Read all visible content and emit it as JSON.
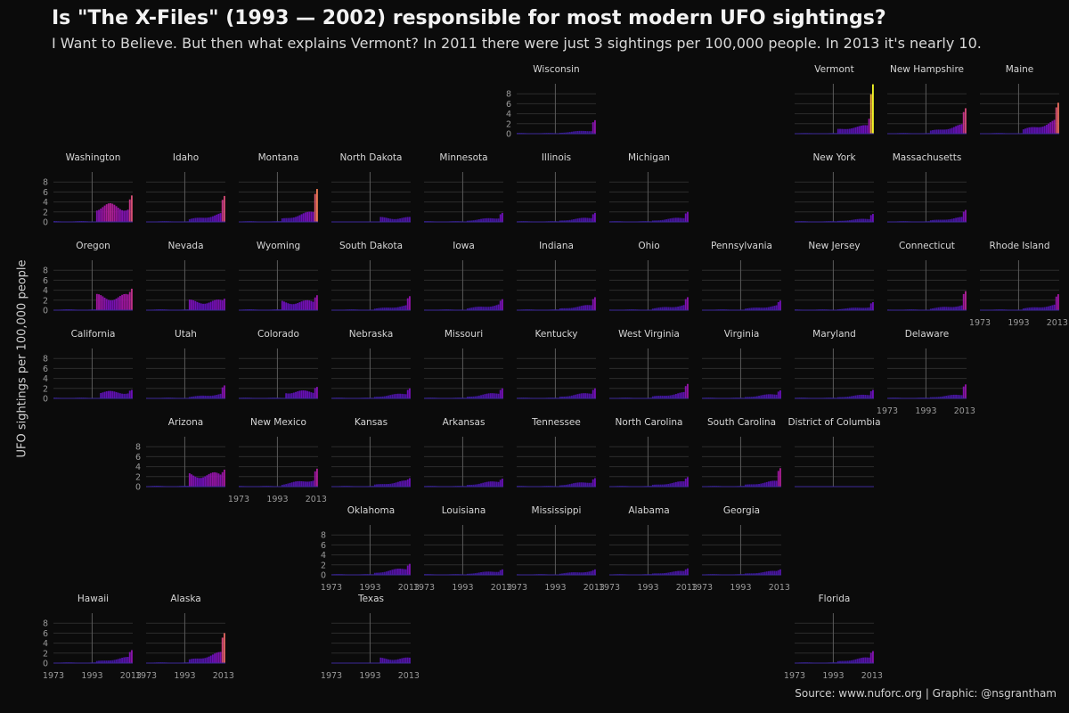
{
  "title": "Is \"The X-Files\" (1993 — 2002) responsible for most modern UFO sightings?",
  "subtitle": "I Want to Believe. But then what explains Vermont? In 2011 there were just 3 sightings per 100,000 people. In 2013 it's nearly 10.",
  "caption": "Source: www.nuforc.org | Graphic: @nsgrantham",
  "chart_data": {
    "type": "bar",
    "ylabel": "UFO sightings per 100,000 people",
    "x_ticks": [
      1973,
      1993,
      2013
    ],
    "y_ticks": [
      0,
      2,
      4,
      6,
      8
    ],
    "xlim": [
      1973,
      2014
    ],
    "ylim": [
      0,
      10
    ],
    "reference_line_year": 1993,
    "color_scale": [
      "#2d1a8c",
      "#6a0fb8",
      "#a1169a",
      "#d0457a",
      "#ee7b51",
      "#f6c13a",
      "#f0f724"
    ],
    "panels": [
      {
        "state": "Wisconsin",
        "row": 0,
        "col": 5,
        "y_axis": true,
        "x_axis": false,
        "level": 0.6,
        "peak": 2.7,
        "shape": "ramp"
      },
      {
        "state": "Vermont",
        "row": 0,
        "col": 8,
        "y_axis": false,
        "x_axis": false,
        "level": 1.6,
        "peak": 9.9,
        "shape": "vermont"
      },
      {
        "state": "New Hampshire",
        "row": 0,
        "col": 9,
        "y_axis": false,
        "x_axis": false,
        "level": 1.5,
        "peak": 5.1,
        "shape": "ramp"
      },
      {
        "state": "Maine",
        "row": 0,
        "col": 10,
        "y_axis": false,
        "x_axis": false,
        "level": 2.2,
        "peak": 6.2,
        "shape": "ramp"
      },
      {
        "state": "Washington",
        "row": 1,
        "col": 0,
        "y_axis": true,
        "x_axis": false,
        "level": 3.0,
        "peak": 5.3,
        "shape": "early"
      },
      {
        "state": "Idaho",
        "row": 1,
        "col": 1,
        "y_axis": false,
        "x_axis": false,
        "level": 1.4,
        "peak": 5.2,
        "shape": "ramp"
      },
      {
        "state": "Montana",
        "row": 1,
        "col": 2,
        "y_axis": false,
        "x_axis": false,
        "level": 1.8,
        "peak": 6.6,
        "shape": "ramp"
      },
      {
        "state": "North Dakota",
        "row": 1,
        "col": 3,
        "y_axis": false,
        "x_axis": false,
        "level": 0.8,
        "peak": 1.2,
        "shape": "flat"
      },
      {
        "state": "Minnesota",
        "row": 1,
        "col": 4,
        "y_axis": false,
        "x_axis": false,
        "level": 0.8,
        "peak": 1.8,
        "shape": "ramp"
      },
      {
        "state": "Illinois",
        "row": 1,
        "col": 5,
        "y_axis": false,
        "x_axis": false,
        "level": 0.8,
        "peak": 1.8,
        "shape": "ramp"
      },
      {
        "state": "Michigan",
        "row": 1,
        "col": 6,
        "y_axis": false,
        "x_axis": false,
        "level": 0.8,
        "peak": 2.0,
        "shape": "ramp"
      },
      {
        "state": "New York",
        "row": 1,
        "col": 8,
        "y_axis": false,
        "x_axis": false,
        "level": 0.6,
        "peak": 1.6,
        "shape": "ramp"
      },
      {
        "state": "Massachusetts",
        "row": 1,
        "col": 9,
        "y_axis": false,
        "x_axis": false,
        "level": 0.8,
        "peak": 2.4,
        "shape": "ramp"
      },
      {
        "state": "Oregon",
        "row": 2,
        "col": 0,
        "y_axis": true,
        "x_axis": false,
        "level": 2.6,
        "peak": 4.3,
        "shape": "early"
      },
      {
        "state": "Nevada",
        "row": 2,
        "col": 1,
        "y_axis": false,
        "x_axis": false,
        "level": 1.7,
        "peak": 2.3,
        "shape": "early"
      },
      {
        "state": "Wyoming",
        "row": 2,
        "col": 2,
        "y_axis": false,
        "x_axis": false,
        "level": 1.6,
        "peak": 3.0,
        "shape": "wyoming"
      },
      {
        "state": "South Dakota",
        "row": 2,
        "col": 3,
        "y_axis": false,
        "x_axis": false,
        "level": 0.8,
        "peak": 2.8,
        "shape": "ramp"
      },
      {
        "state": "Iowa",
        "row": 2,
        "col": 4,
        "y_axis": false,
        "x_axis": false,
        "level": 1.0,
        "peak": 2.2,
        "shape": "ramp"
      },
      {
        "state": "Indiana",
        "row": 2,
        "col": 5,
        "y_axis": false,
        "x_axis": false,
        "level": 0.9,
        "peak": 2.6,
        "shape": "ramp"
      },
      {
        "state": "Ohio",
        "row": 2,
        "col": 6,
        "y_axis": false,
        "x_axis": false,
        "level": 0.9,
        "peak": 2.6,
        "shape": "ramp"
      },
      {
        "state": "Pennsylvania",
        "row": 2,
        "col": 7,
        "y_axis": false,
        "x_axis": false,
        "level": 0.8,
        "peak": 1.9,
        "shape": "ramp"
      },
      {
        "state": "New Jersey",
        "row": 2,
        "col": 8,
        "y_axis": false,
        "x_axis": false,
        "level": 0.6,
        "peak": 1.6,
        "shape": "ramp"
      },
      {
        "state": "Connecticut",
        "row": 2,
        "col": 9,
        "y_axis": false,
        "x_axis": false,
        "level": 0.9,
        "peak": 3.8,
        "shape": "ramp"
      },
      {
        "state": "Rhode Island",
        "row": 2,
        "col": 10,
        "y_axis": false,
        "x_axis": true,
        "level": 0.9,
        "peak": 3.2,
        "shape": "ramp"
      },
      {
        "state": "California",
        "row": 3,
        "col": 0,
        "y_axis": true,
        "x_axis": false,
        "level": 1.3,
        "peak": 1.7,
        "shape": "plateau"
      },
      {
        "state": "Utah",
        "row": 3,
        "col": 1,
        "y_axis": false,
        "x_axis": false,
        "level": 0.8,
        "peak": 2.6,
        "shape": "ramp"
      },
      {
        "state": "Colorado",
        "row": 3,
        "col": 2,
        "y_axis": false,
        "x_axis": false,
        "level": 1.4,
        "peak": 2.3,
        "shape": "plateau"
      },
      {
        "state": "Nebraska",
        "row": 3,
        "col": 3,
        "y_axis": false,
        "x_axis": false,
        "level": 0.9,
        "peak": 2.0,
        "shape": "ramp"
      },
      {
        "state": "Missouri",
        "row": 3,
        "col": 4,
        "y_axis": false,
        "x_axis": false,
        "level": 1.0,
        "peak": 2.0,
        "shape": "ramp"
      },
      {
        "state": "Kentucky",
        "row": 3,
        "col": 5,
        "y_axis": false,
        "x_axis": false,
        "level": 1.0,
        "peak": 2.0,
        "shape": "ramp"
      },
      {
        "state": "West Virginia",
        "row": 3,
        "col": 6,
        "y_axis": false,
        "x_axis": false,
        "level": 1.0,
        "peak": 2.9,
        "shape": "ramp"
      },
      {
        "state": "Virginia",
        "row": 3,
        "col": 7,
        "y_axis": false,
        "x_axis": false,
        "level": 0.8,
        "peak": 1.6,
        "shape": "ramp"
      },
      {
        "state": "Maryland",
        "row": 3,
        "col": 8,
        "y_axis": false,
        "x_axis": false,
        "level": 0.7,
        "peak": 1.7,
        "shape": "ramp"
      },
      {
        "state": "Delaware",
        "row": 3,
        "col": 9,
        "y_axis": false,
        "x_axis": true,
        "level": 0.7,
        "peak": 2.8,
        "shape": "ramp"
      },
      {
        "state": "Arizona",
        "row": 4,
        "col": 1,
        "y_axis": true,
        "x_axis": false,
        "level": 2.3,
        "peak": 3.4,
        "shape": "early"
      },
      {
        "state": "New Mexico",
        "row": 4,
        "col": 2,
        "y_axis": false,
        "x_axis": true,
        "level": 1.3,
        "peak": 3.6,
        "shape": "ramp"
      },
      {
        "state": "Kansas",
        "row": 4,
        "col": 3,
        "y_axis": false,
        "x_axis": false,
        "level": 1.0,
        "peak": 1.7,
        "shape": "ramp"
      },
      {
        "state": "Arkansas",
        "row": 4,
        "col": 4,
        "y_axis": false,
        "x_axis": false,
        "level": 1.0,
        "peak": 1.6,
        "shape": "ramp"
      },
      {
        "state": "Tennessee",
        "row": 4,
        "col": 5,
        "y_axis": false,
        "x_axis": false,
        "level": 0.9,
        "peak": 1.7,
        "shape": "ramp"
      },
      {
        "state": "North Carolina",
        "row": 4,
        "col": 6,
        "y_axis": false,
        "x_axis": false,
        "level": 0.9,
        "peak": 1.9,
        "shape": "ramp"
      },
      {
        "state": "South Carolina",
        "row": 4,
        "col": 7,
        "y_axis": false,
        "x_axis": false,
        "level": 1.0,
        "peak": 3.7,
        "shape": "ramp"
      },
      {
        "state": "District of Columbia",
        "row": 4,
        "col": 8,
        "y_axis": false,
        "x_axis": false,
        "level": 0.05,
        "peak": 0.6,
        "shape": "flat"
      },
      {
        "state": "Oklahoma",
        "row": 5,
        "col": 3,
        "y_axis": true,
        "x_axis": true,
        "level": 1.2,
        "peak": 2.2,
        "shape": "ramp"
      },
      {
        "state": "Louisiana",
        "row": 5,
        "col": 4,
        "y_axis": false,
        "x_axis": true,
        "level": 0.7,
        "peak": 1.1,
        "shape": "ramp"
      },
      {
        "state": "Mississippi",
        "row": 5,
        "col": 5,
        "y_axis": false,
        "x_axis": true,
        "level": 0.7,
        "peak": 1.1,
        "shape": "ramp"
      },
      {
        "state": "Alabama",
        "row": 5,
        "col": 6,
        "y_axis": false,
        "x_axis": true,
        "level": 0.7,
        "peak": 1.3,
        "shape": "ramp"
      },
      {
        "state": "Georgia",
        "row": 5,
        "col": 7,
        "y_axis": false,
        "x_axis": true,
        "level": 0.7,
        "peak": 1.1,
        "shape": "ramp"
      },
      {
        "state": "Hawaii",
        "row": 6,
        "col": 0,
        "y_axis": true,
        "x_axis": true,
        "level": 1.0,
        "peak": 2.6,
        "shape": "ramp"
      },
      {
        "state": "Alaska",
        "row": 6,
        "col": 1,
        "y_axis": false,
        "x_axis": true,
        "level": 1.8,
        "peak": 6.0,
        "shape": "ramp"
      },
      {
        "state": "Texas",
        "row": 6,
        "col": 3,
        "y_axis": false,
        "x_axis": true,
        "level": 0.9,
        "peak": 1.1,
        "shape": "flat"
      },
      {
        "state": "Florida",
        "row": 6,
        "col": 8,
        "y_axis": false,
        "x_axis": true,
        "level": 1.0,
        "peak": 2.4,
        "shape": "ramp"
      }
    ]
  }
}
